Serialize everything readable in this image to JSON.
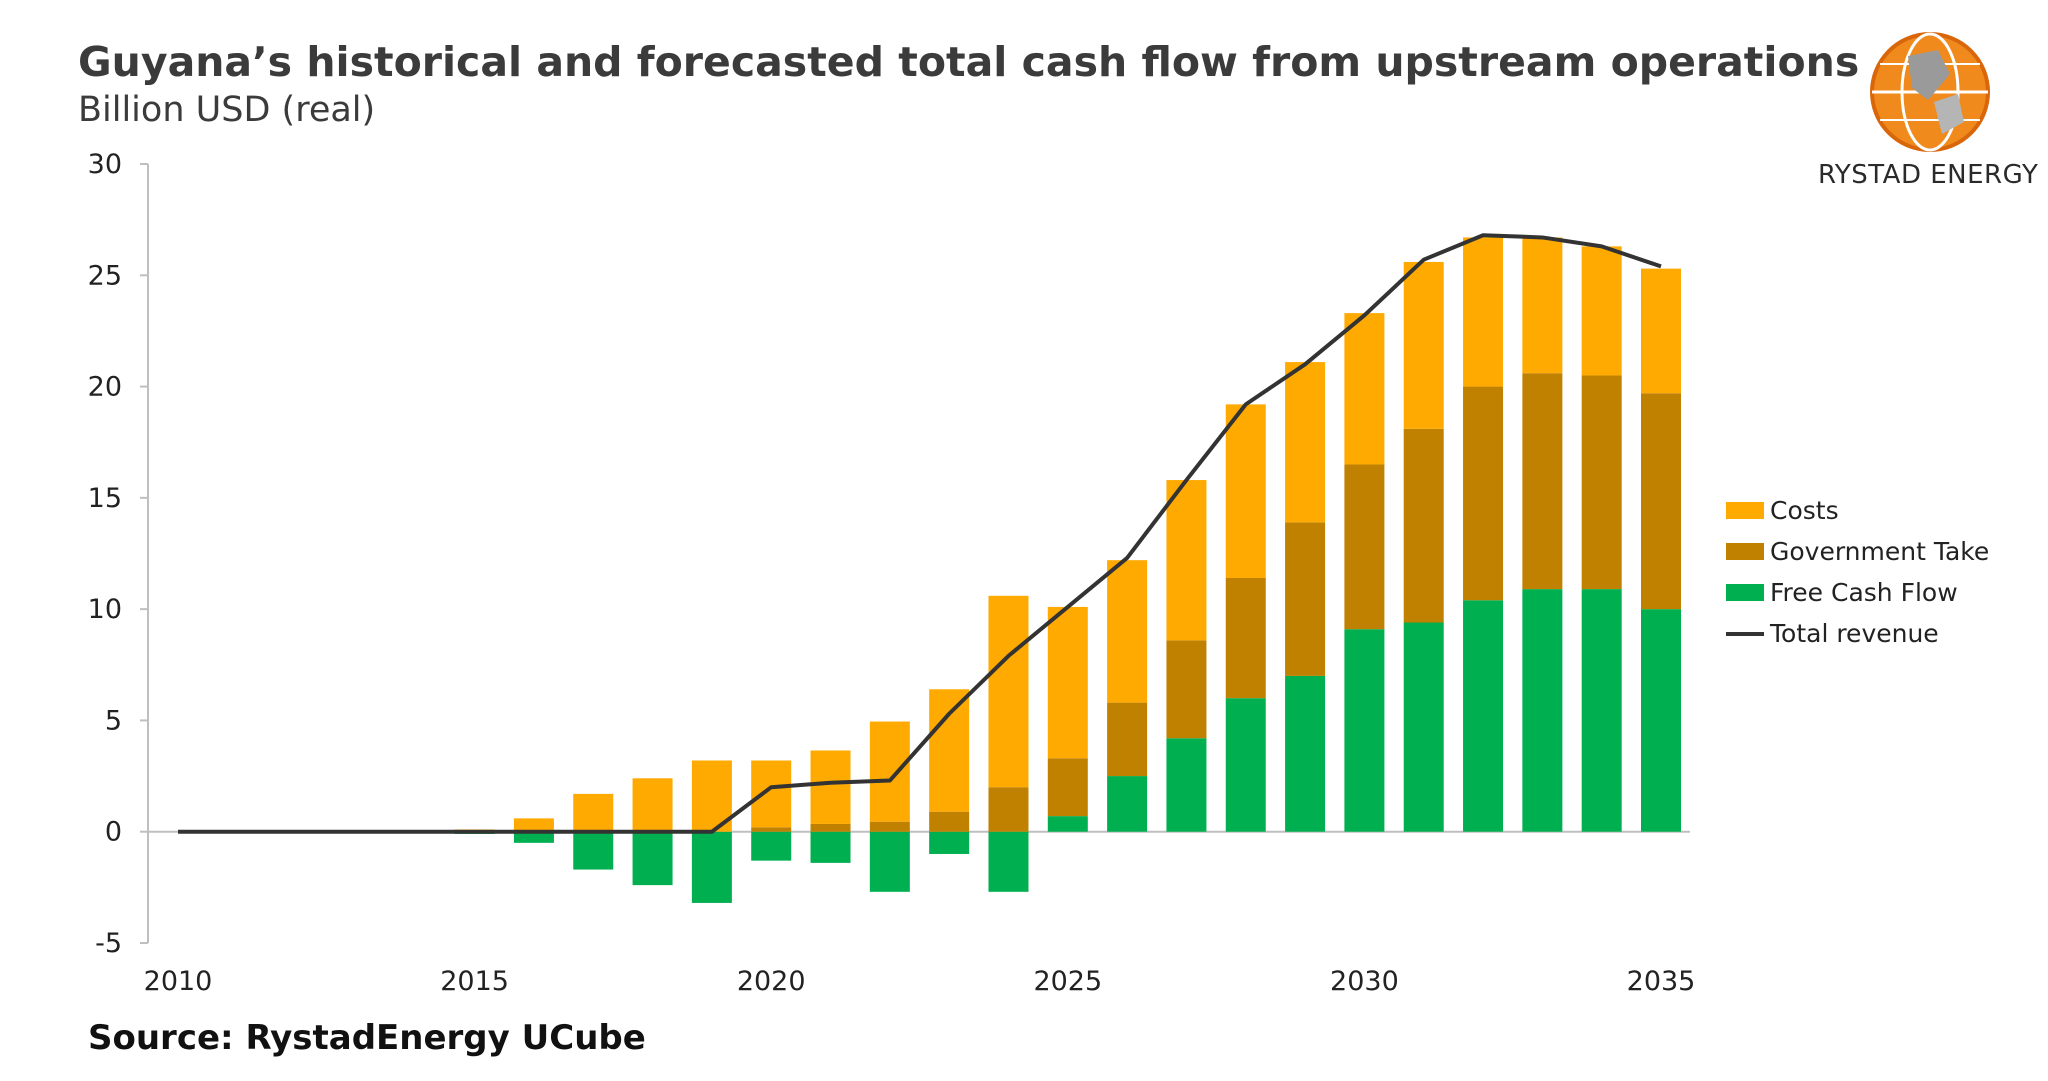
{
  "header": {
    "title": "Guyana’s historical and forecasted total cash flow from upstream operations",
    "subtitle": "Billion USD (real)"
  },
  "logo": {
    "text": "RYSTAD ENERGY",
    "icon": "globe-logo-icon"
  },
  "source": "Source: RystadEnergy UCube",
  "colors": {
    "costs": "#FFAA00",
    "government_take": "#C08000",
    "free_cash_flow": "#00B050",
    "total_revenue": "#333333",
    "axis": "#bfbfbf"
  },
  "chart_data": {
    "type": "bar",
    "stacked": true,
    "x": [
      2010,
      2011,
      2012,
      2013,
      2014,
      2015,
      2016,
      2017,
      2018,
      2019,
      2020,
      2021,
      2022,
      2023,
      2024,
      2025,
      2026,
      2027,
      2028,
      2029,
      2030,
      2031,
      2032,
      2033,
      2034,
      2035
    ],
    "x_tick_labels": [
      "2010",
      "2015",
      "2020",
      "2025",
      "2030",
      "2035"
    ],
    "y_tick_labels": [
      "-5",
      "0",
      "5",
      "10",
      "15",
      "20",
      "25",
      "30"
    ],
    "ylim": [
      -5,
      30
    ],
    "grid": false,
    "legend_position": "right",
    "series": [
      {
        "name": "Free Cash Flow",
        "type": "bar",
        "values": [
          0,
          0,
          0,
          0,
          0,
          -0.1,
          -0.5,
          -1.7,
          -2.4,
          -3.2,
          -1.3,
          -1.4,
          -2.7,
          -1.0,
          -2.7,
          0.7,
          2.5,
          4.2,
          6.0,
          7.0,
          9.1,
          9.4,
          10.4,
          10.9,
          10.9,
          10.0
        ]
      },
      {
        "name": "Government Take",
        "type": "bar",
        "values": [
          0,
          0,
          0,
          0,
          0,
          0,
          0,
          0,
          0,
          0,
          0.2,
          0.35,
          0.45,
          0.9,
          2.0,
          2.6,
          3.3,
          4.4,
          5.4,
          6.9,
          7.4,
          8.7,
          9.6,
          9.7,
          9.6,
          9.7
        ]
      },
      {
        "name": "Costs",
        "type": "bar",
        "values": [
          0,
          0,
          0,
          0,
          0,
          0.1,
          0.6,
          1.7,
          2.4,
          3.2,
          3.0,
          3.3,
          4.5,
          5.5,
          8.6,
          6.8,
          6.4,
          7.2,
          7.8,
          7.2,
          6.8,
          7.5,
          6.7,
          6.1,
          5.8,
          5.6
        ]
      },
      {
        "name": "Total revenue",
        "type": "line",
        "values": [
          0,
          0,
          0,
          0,
          0,
          0,
          0,
          0,
          0,
          0,
          2.0,
          2.2,
          2.3,
          5.3,
          7.9,
          10.1,
          12.3,
          15.8,
          19.2,
          21.0,
          23.2,
          25.7,
          26.8,
          26.7,
          26.3,
          25.4
        ]
      }
    ]
  }
}
